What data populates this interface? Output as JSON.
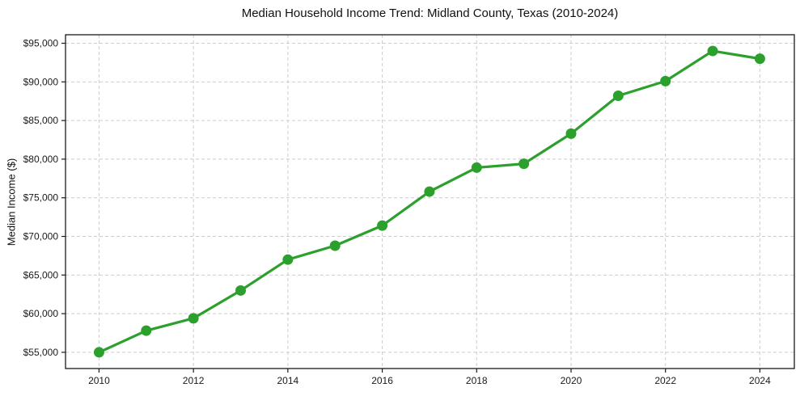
{
  "chart_data": {
    "type": "line",
    "title": "Median Household Income Trend: Midland County, Texas (2010-2024)",
    "xlabel": "",
    "ylabel": "Median Income ($)",
    "x": [
      2010,
      2011,
      2012,
      2013,
      2014,
      2015,
      2016,
      2017,
      2018,
      2019,
      2020,
      2021,
      2022,
      2023,
      2024
    ],
    "values": [
      55000,
      57800,
      59400,
      63000,
      67000,
      68800,
      71400,
      75800,
      78900,
      79400,
      83300,
      88200,
      90100,
      94000,
      93000
    ],
    "xlim": [
      2009.29,
      2024.73
    ],
    "ylim": [
      52900,
      96100
    ],
    "x_tick_values": [
      2010,
      2012,
      2014,
      2016,
      2018,
      2020,
      2022,
      2024
    ],
    "x_tick_labels": [
      "2010",
      "2012",
      "2014",
      "2016",
      "2018",
      "2020",
      "2022",
      "2024"
    ],
    "y_tick_values": [
      55000,
      60000,
      65000,
      70000,
      75000,
      80000,
      85000,
      90000,
      95000
    ],
    "y_tick_labels": [
      "$55,000",
      "$60,000",
      "$65,000",
      "$70,000",
      "$75,000",
      "$80,000",
      "$85,000",
      "$90,000",
      "$95,000"
    ],
    "grid": true,
    "grid_style": "dashed",
    "legend": "none",
    "line_color": "#2ca02c",
    "grid_color": "#cccccc",
    "axis_color": "#1a1a1a",
    "marker": "circle"
  }
}
